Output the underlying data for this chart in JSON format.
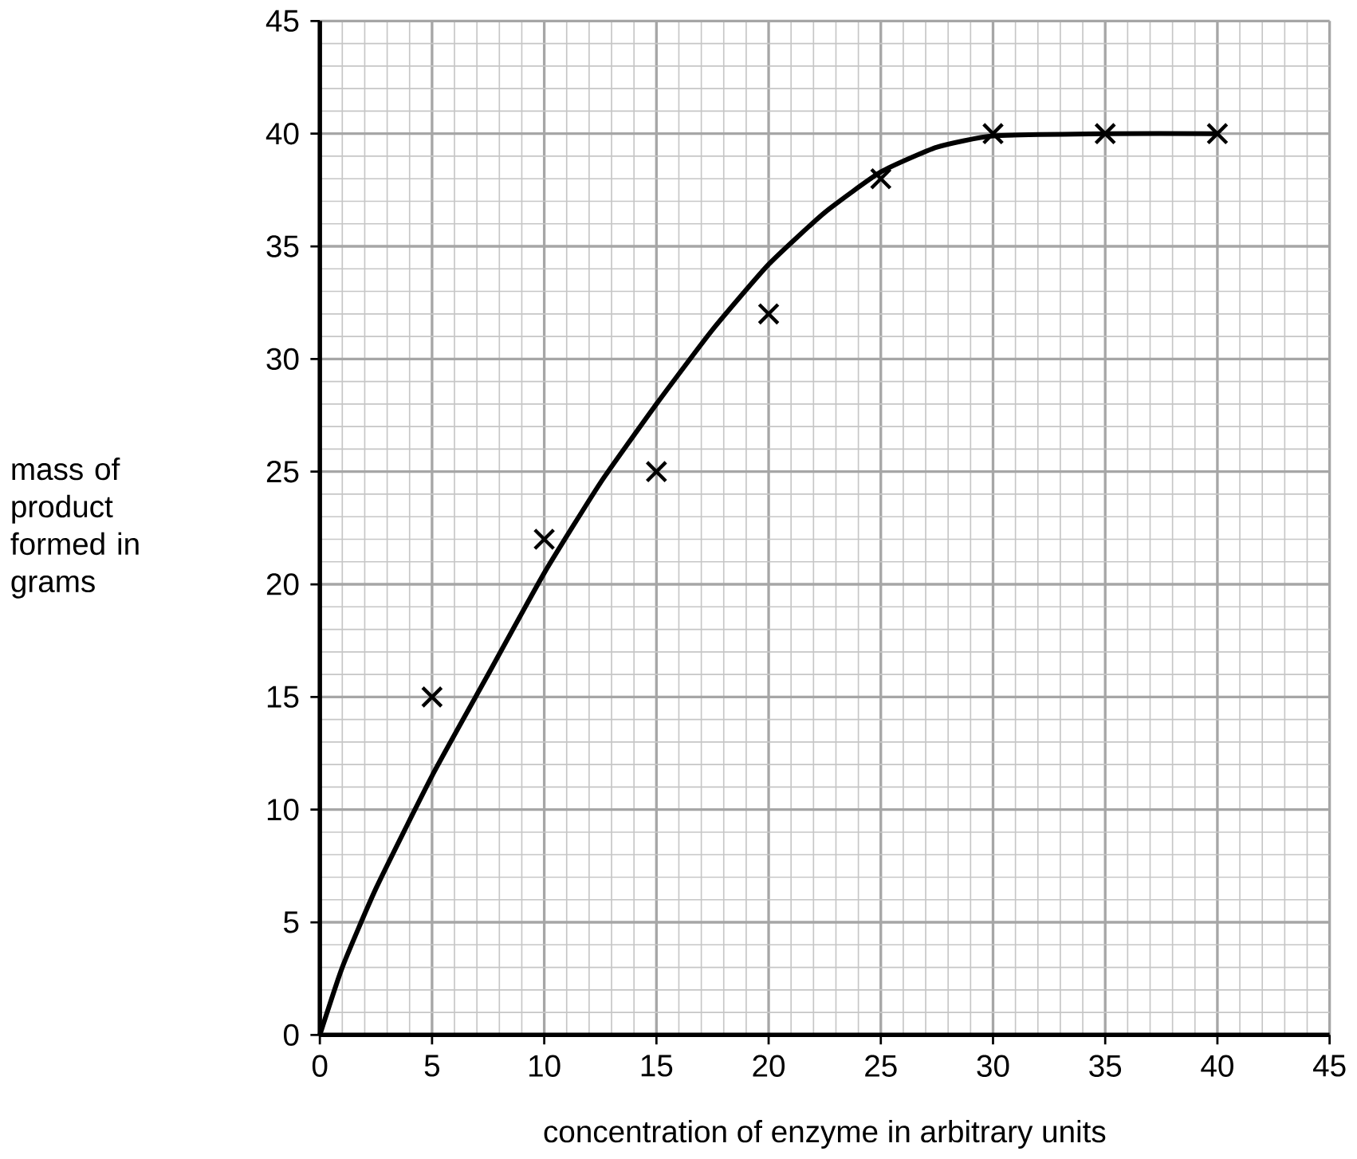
{
  "chart_data": {
    "type": "scatter",
    "xlabel": "concentration of enzyme in arbitrary units",
    "ylabel": "mass of product formed in grams",
    "xlim": [
      0,
      45
    ],
    "ylim": [
      0,
      45
    ],
    "xticks": [
      0,
      5,
      10,
      15,
      20,
      25,
      30,
      35,
      40,
      45
    ],
    "yticks": [
      0,
      5,
      10,
      15,
      20,
      25,
      30,
      35,
      40,
      45
    ],
    "grid": true,
    "series": [
      {
        "marker": "cross",
        "color": "#000000",
        "x": [
          5,
          10,
          15,
          20,
          25,
          30,
          35,
          40
        ],
        "values": [
          15,
          22,
          25,
          32,
          38,
          40,
          40,
          40
        ]
      },
      {
        "type": "line",
        "marker": "none",
        "line_style": "solid",
        "color": "#000000",
        "x": [
          0,
          1,
          2.5,
          5,
          7.5,
          10,
          12.5,
          15,
          17.5,
          20,
          22.5,
          25,
          27.5,
          30,
          35,
          40
        ],
        "values": [
          0,
          3,
          6.5,
          11.5,
          16,
          20.5,
          24.5,
          28,
          31.3,
          34.2,
          36.5,
          38.3,
          39.4,
          39.9,
          40,
          40
        ]
      }
    ]
  }
}
